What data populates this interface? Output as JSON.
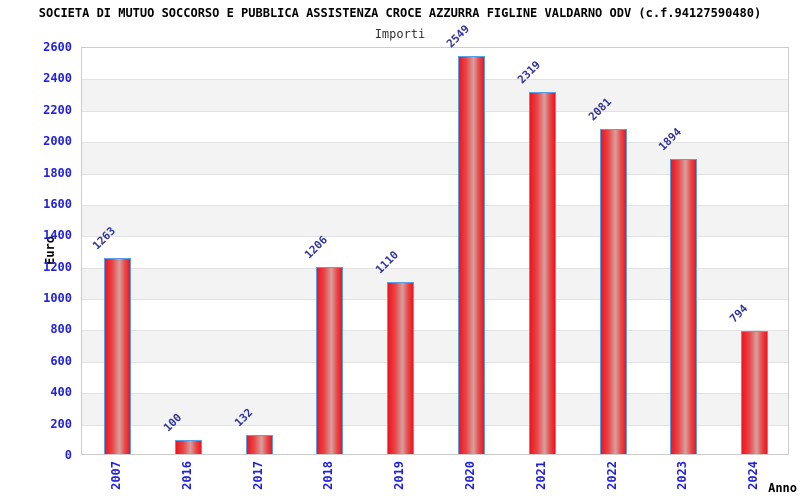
{
  "chart_data": {
    "type": "bar",
    "title": "SOCIETA DI MUTUO SOCCORSO E PUBBLICA ASSISTENZA CROCE AZZURRA FIGLINE VALDARNO ODV (c.f.94127590480)",
    "subtitle": "Importi",
    "xlabel": "Anno",
    "ylabel": "Euro",
    "categories": [
      "2007",
      "2016",
      "2017",
      "2018",
      "2019",
      "2020",
      "2021",
      "2022",
      "2023",
      "2024"
    ],
    "values": [
      1263,
      100,
      132,
      1206,
      1110,
      2549,
      2319,
      2081,
      1894,
      794
    ],
    "ylim": [
      0,
      2600
    ],
    "ytick_step": 200,
    "ytick_labels": [
      "0",
      "200",
      "400",
      "600",
      "800",
      "1000",
      "1200",
      "1400",
      "1600",
      "1800",
      "2000",
      "2200",
      "2400",
      "2600"
    ],
    "x_tick_rotation_deg": -90,
    "value_label_rotation_deg": -45,
    "legend_position": "none",
    "grid": "horizontal gridlines with alternating background bands every 200",
    "colors": {
      "bar_edge": "#ee1520",
      "bar_light": "#e84848",
      "bar_mid": "#d6a0a0",
      "bar_border": "#55a0e8",
      "axis_tick_label": "#2222dd",
      "value_label": "#333399",
      "band_alt": "#f3f3f3",
      "grid_line": "#e2e2e2",
      "plot_border": "#cccccc",
      "title": "#000000",
      "subtitle": "#333333",
      "axis_name_label": "#000000"
    }
  }
}
